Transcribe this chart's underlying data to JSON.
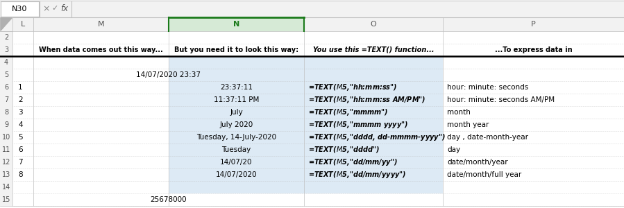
{
  "title_bar": "N30",
  "col_headers": [
    "L",
    "M",
    "N",
    "O",
    "P"
  ],
  "header_row": {
    "col_M": "When data comes out this way...",
    "col_N": "But you need it to look this way:",
    "col_O": "You use this =TEXT() function...",
    "col_P": "...To express data in"
  },
  "row5_value": "14/07/2020 23:37",
  "data_rows": [
    {
      "num": "1",
      "col_N": "23:37:11",
      "col_O": "=TEXT($M$5,\"hh:mm:ss\")",
      "col_P": "hour: minute: seconds"
    },
    {
      "num": "2",
      "col_N": "11:37:11 PM",
      "col_O": "=TEXT($M$5,\"hh:mm:ss AM/PM\")",
      "col_P": "hour: minute: seconds AM/PM"
    },
    {
      "num": "3",
      "col_N": "July",
      "col_O": "=TEXT($M$5,\"mmmm\")",
      "col_P": "month"
    },
    {
      "num": "4",
      "col_N": "July 2020",
      "col_O": "=TEXT($M$5,\"mmmm yyyy\")",
      "col_P": "month year"
    },
    {
      "num": "5",
      "col_N": "Tuesday, 14-July-2020",
      "col_O": "=TEXT($M$5,\"dddd, dd-mmmm-yyyy\")",
      "col_P": "day , date-month-year"
    },
    {
      "num": "6",
      "col_N": "Tuesday",
      "col_O": "=TEXT($M$5,\"dddd\")",
      "col_P": "day"
    },
    {
      "num": "7",
      "col_N": "14/07/20",
      "col_O": "=TEXT($M$5,\"dd/mm/yy\")",
      "col_P": "date/month/year"
    },
    {
      "num": "8",
      "col_N": "14/07/2020",
      "col_O": "=TEXT($M$5,\"dd/mm/yyyy\")",
      "col_P": "date/month/full year"
    }
  ],
  "row15_value": "25678000",
  "highlight_color": "#ddeaf5",
  "selected_col_bg": "#d6ead6",
  "selected_col_border": "#1a7a1a",
  "col_header_bg": "#f2f2f2",
  "row_num_col_bg": "#f2f2f2",
  "grid_color": "#c8c8c8",
  "dashed_color": "#b8b8b8",
  "formula_bar_bg": "#f2f2f2",
  "text_black": "#000000",
  "text_gray": "#666666"
}
